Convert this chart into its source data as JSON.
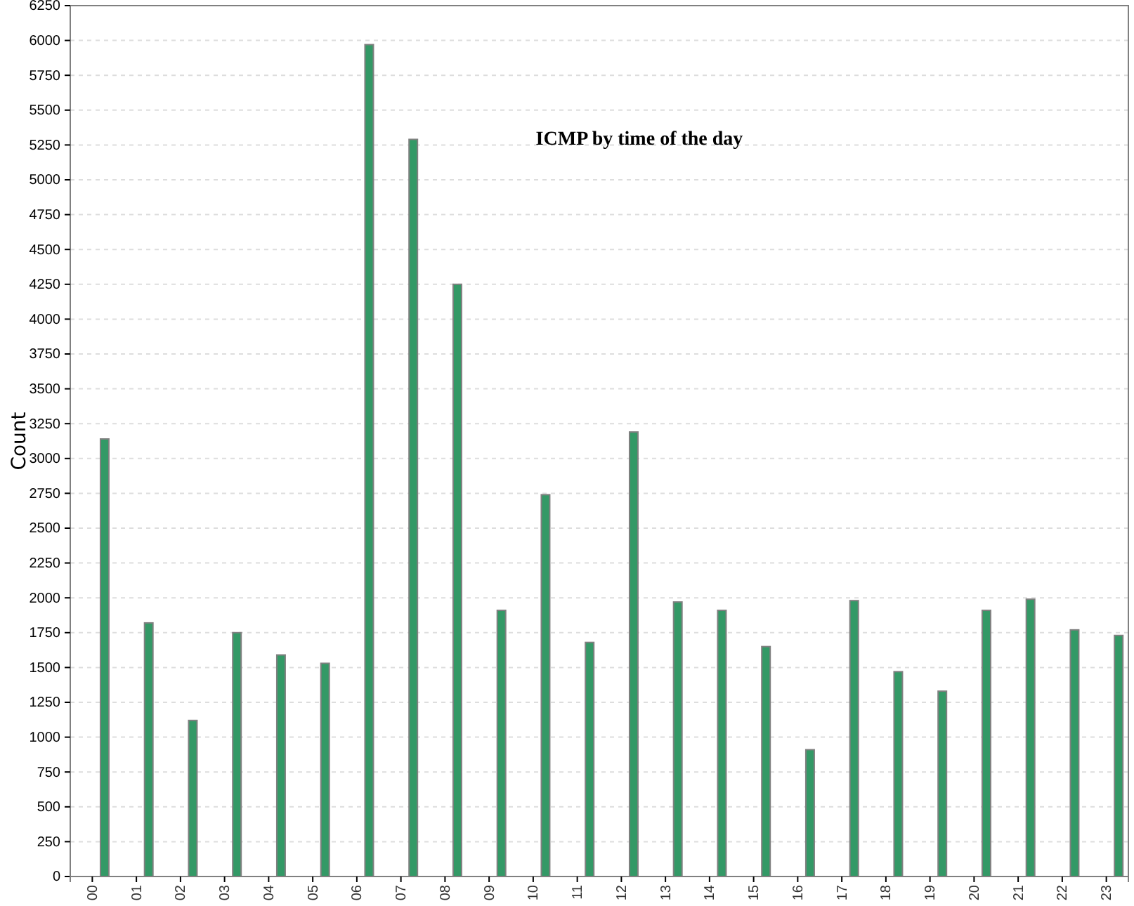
{
  "chart_data": {
    "type": "bar",
    "title": "ICMP by time of the day",
    "ylabel": "Count",
    "categories": [
      "00",
      "01",
      "02",
      "03",
      "04",
      "05",
      "06",
      "07",
      "08",
      "09",
      "10",
      "11",
      "12",
      "13",
      "14",
      "15",
      "16",
      "17",
      "18",
      "19",
      "20",
      "21",
      "22",
      "23"
    ],
    "values": [
      3140,
      1820,
      1120,
      1750,
      1590,
      1530,
      5970,
      5290,
      4250,
      1910,
      2740,
      1680,
      3190,
      1970,
      1910,
      1650,
      910,
      1980,
      1470,
      1330,
      1910,
      1990,
      1770,
      1730
    ],
    "color": "#339966",
    "ylim": [
      0,
      6250
    ],
    "yticks": [
      0,
      250,
      500,
      750,
      1000,
      1250,
      1500,
      1750,
      2000,
      2250,
      2500,
      2750,
      3000,
      3250,
      3500,
      3750,
      4000,
      4250,
      4500,
      4750,
      5000,
      5250,
      5500,
      5750,
      6000,
      6250
    ],
    "grid": "y"
  }
}
